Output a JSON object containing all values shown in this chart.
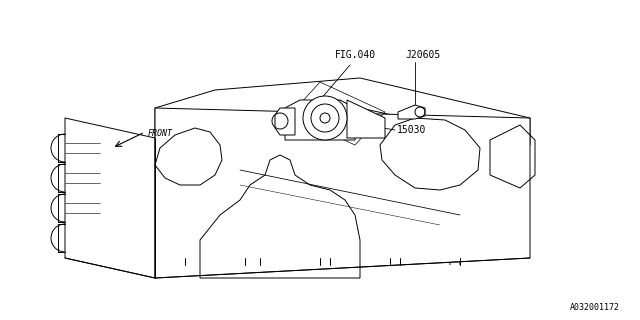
{
  "bg_color": "#ffffff",
  "line_color": "#000000",
  "fig_width": 6.4,
  "fig_height": 3.2,
  "dpi": 100,
  "labels": {
    "fig040": "FIG.040",
    "j20605": "J20605",
    "part15030": "15030",
    "front": "FRONT",
    "part_num": "A032001172"
  },
  "font_size": 7.0,
  "small_font": 6.0
}
